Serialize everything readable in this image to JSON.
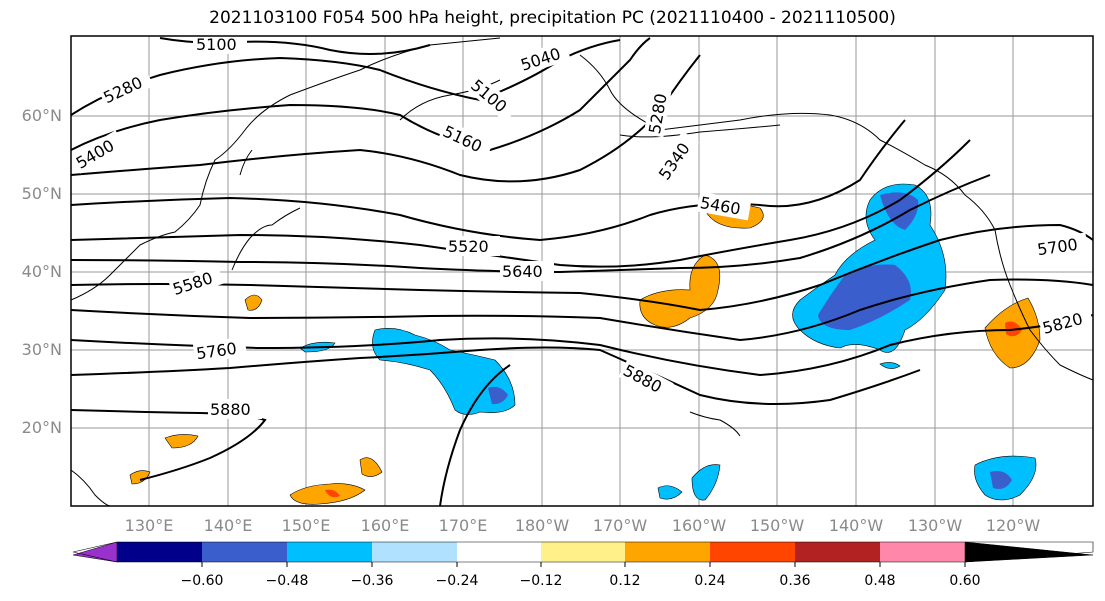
{
  "title": "2021103100 F054 500 hPa height, precipitation PC (2021110400 - 2021110500)",
  "lat_labels": [
    "60°N",
    "50°N",
    "40°N",
    "30°N",
    "20°N"
  ],
  "lon_labels": [
    "130°E",
    "140°E",
    "150°E",
    "160°E",
    "170°E",
    "180°W",
    "170°W",
    "160°W",
    "150°W",
    "140°W",
    "130°W",
    "120°W"
  ],
  "contour_labels": [
    "5100",
    "5040",
    "5280",
    "5100",
    "5160",
    "5400",
    "5280",
    "5340",
    "5460",
    "5520",
    "5640",
    "5580",
    "5700",
    "5760",
    "5820",
    "5880",
    "5880"
  ],
  "colorbar": {
    "colors": [
      "#9932cc",
      "#00008b",
      "#3a5fcd",
      "#00bfff",
      "#b0e2ff",
      "#ffffff",
      "#fff08a",
      "#ffa500",
      "#ff4500",
      "#b22222",
      "#ff88aa"
    ],
    "ticks": [
      "−0.60",
      "−0.48",
      "−0.36",
      "−0.24",
      "−0.12",
      "0.12",
      "0.24",
      "0.36",
      "0.48",
      "0.60"
    ]
  }
}
